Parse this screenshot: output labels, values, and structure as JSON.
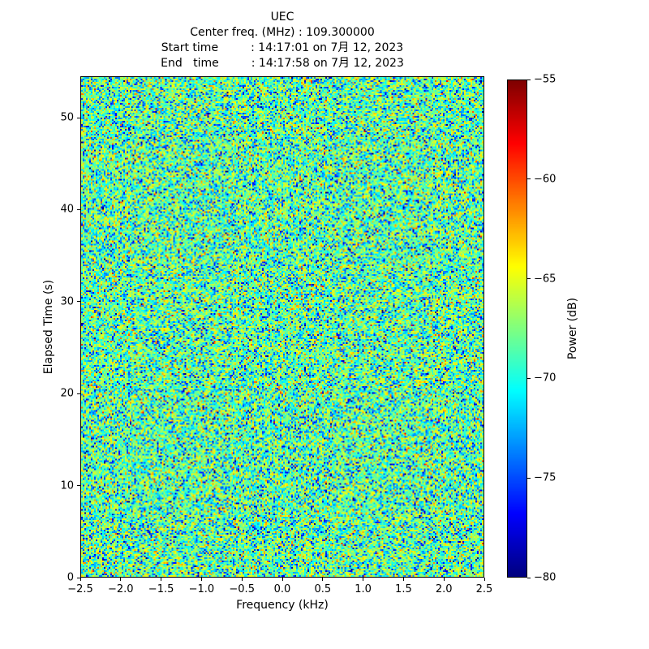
{
  "figure": {
    "kind": "spectrogram-waterfall"
  },
  "chart_data": {
    "type": "heatmap",
    "title": "UEC",
    "header_lines": [
      "Center freq. (MHz) : 109.300000",
      "Start time         : 14:17:01 on 7月 12, 2023",
      "End   time         : 14:17:58 on 7月 12, 2023"
    ],
    "center_freq_mhz": "109.300000",
    "start_time": "14:17:01 on 7月 12, 2023",
    "end_time": "14:17:58 on 7月 12, 2023",
    "xlabel": "Frequency (kHz)",
    "ylabel": "Elapsed Time (s)",
    "xlim": [
      -2.5,
      2.5
    ],
    "ylim": [
      0,
      54.5
    ],
    "grid": false,
    "xticks": {
      "values": [
        -2.5,
        -2.0,
        -1.5,
        -1.0,
        -0.5,
        0.0,
        0.5,
        1.0,
        1.5,
        2.0,
        2.5
      ],
      "labels": [
        "−2.5",
        "−2.0",
        "−1.5",
        "−1.0",
        "−0.5",
        "0.0",
        "0.5",
        "1.0",
        "1.5",
        "2.0",
        "2.5"
      ]
    },
    "yticks": {
      "values": [
        0,
        10,
        20,
        30,
        40,
        50
      ],
      "labels": [
        "0",
        "10",
        "20",
        "30",
        "40",
        "50"
      ]
    },
    "colorbar": {
      "label": "Power (dB)",
      "colormap": "jet",
      "vmin": -80,
      "vmax": -55,
      "position": "right",
      "ticks": {
        "values": [
          -55,
          -60,
          -65,
          -70,
          -75,
          -80
        ],
        "labels": [
          "−55",
          "−60",
          "−65",
          "−70",
          "−75",
          "−80"
        ]
      }
    },
    "values_summary": {
      "description": "Uniform broadband noise across the whole time-frequency plane, no visible carrier or signal features; power speckle mostly between −74 and −63 dB with sparse dark-blue lows near −80 dB and rare orange/red highs above −60 dB",
      "mean_db": -68.3,
      "std_db": 3.2
    },
    "noise_render": {
      "seed": 1337,
      "cols": 249,
      "rows": 309
    }
  }
}
